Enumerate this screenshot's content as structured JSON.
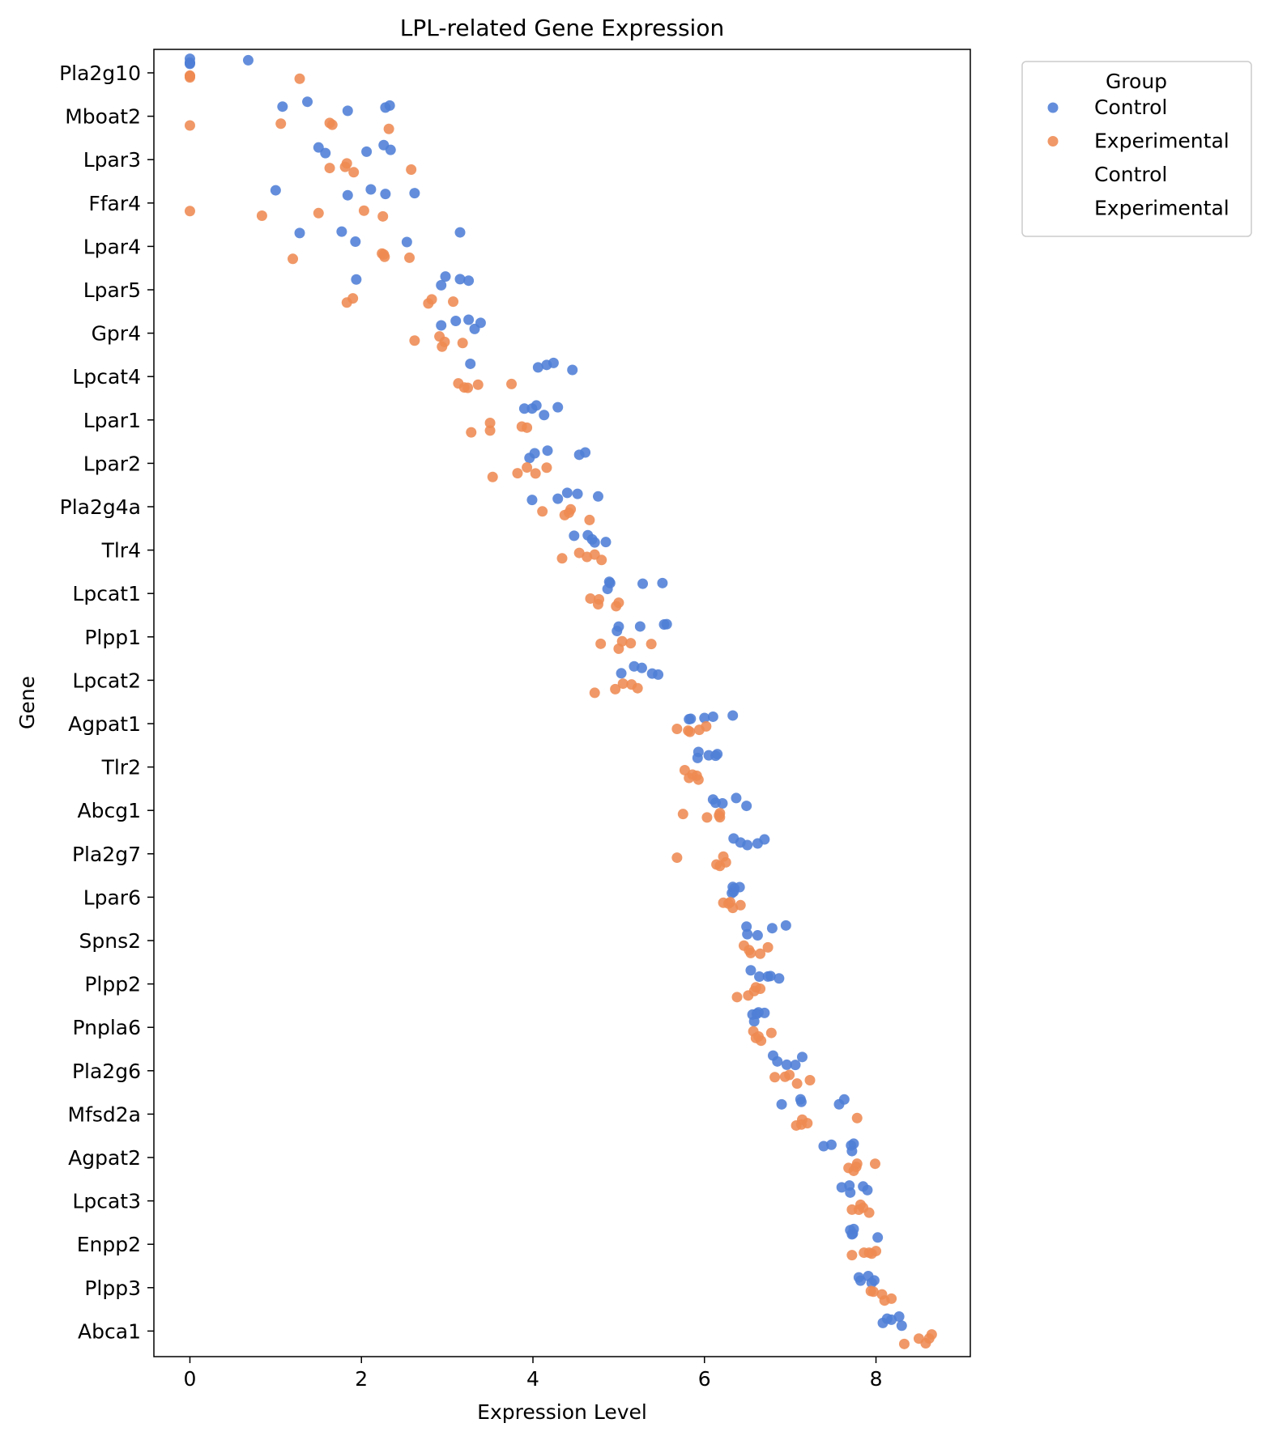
{
  "chart_data": {
    "type": "scatter",
    "title": "LPL-related Gene Expression",
    "xlabel": "Expression Level",
    "ylabel": "Gene",
    "xlim": [
      -0.42,
      9.1
    ],
    "x_ticks": [
      0,
      2,
      4,
      6,
      8
    ],
    "grid": false,
    "legend": {
      "title": "Group",
      "placement": "upper-left-outside",
      "entries": [
        "Control",
        "Experimental",
        "Control",
        "Experimental"
      ]
    },
    "colors": {
      "Control": "#4e7ed6",
      "Experimental": "#ee8a52"
    },
    "categories": [
      "Pla2g10",
      "Mboat2",
      "Lpar3",
      "Ffar4",
      "Lpar4",
      "Lpar5",
      "Gpr4",
      "Lpcat4",
      "Lpar1",
      "Lpar2",
      "Pla2g4a",
      "Tlr4",
      "Lpcat1",
      "Plpp1",
      "Lpcat2",
      "Agpat1",
      "Tlr2",
      "Abcg1",
      "Pla2g7",
      "Lpar6",
      "Spns2",
      "Plpp2",
      "Pnpla6",
      "Pla2g6",
      "Mfsd2a",
      "Agpat2",
      "Lpcat3",
      "Enpp2",
      "Plpp3",
      "Abca1"
    ],
    "series": [
      {
        "name": "Control",
        "values": [
          [
            0,
            0,
            0,
            0.68,
            0
          ],
          [
            1.08,
            1.37,
            1.84,
            2.28,
            2.33
          ],
          [
            1.5,
            1.58,
            2.06,
            2.26,
            2.34
          ],
          [
            1.0,
            1.84,
            2.11,
            2.28,
            2.62
          ],
          [
            1.28,
            1.77,
            1.93,
            2.53,
            3.15
          ],
          [
            1.94,
            2.93,
            2.98,
            3.15,
            3.25
          ],
          [
            2.93,
            3.1,
            3.25,
            3.32,
            3.39
          ],
          [
            3.27,
            4.06,
            4.16,
            4.24,
            4.46
          ],
          [
            3.9,
            3.99,
            4.04,
            4.13,
            4.29
          ],
          [
            3.96,
            4.02,
            4.17,
            4.54,
            4.61
          ],
          [
            3.99,
            4.29,
            4.4,
            4.52,
            4.76
          ],
          [
            4.48,
            4.64,
            4.69,
            4.72,
            4.85
          ],
          [
            4.87,
            4.89,
            4.9,
            5.28,
            5.51
          ],
          [
            4.98,
            5.0,
            5.25,
            5.53,
            5.56
          ],
          [
            5.03,
            5.18,
            5.27,
            5.39,
            5.46
          ],
          [
            5.82,
            5.84,
            6.0,
            6.1,
            6.33
          ],
          [
            5.92,
            5.93,
            6.05,
            6.13,
            6.15
          ],
          [
            6.1,
            6.13,
            6.21,
            6.37,
            6.49
          ],
          [
            6.34,
            6.42,
            6.5,
            6.62,
            6.7
          ],
          [
            6.32,
            6.33,
            6.34,
            6.35,
            6.41
          ],
          [
            6.49,
            6.5,
            6.62,
            6.79,
            6.95
          ],
          [
            6.54,
            6.64,
            6.74,
            6.77,
            6.87
          ],
          [
            6.56,
            6.58,
            6.61,
            6.63,
            6.7
          ],
          [
            6.8,
            6.85,
            6.96,
            7.06,
            7.14
          ],
          [
            6.9,
            7.12,
            7.13,
            7.57,
            7.63
          ],
          [
            7.39,
            7.48,
            7.71,
            7.72,
            7.74
          ],
          [
            7.6,
            7.69,
            7.7,
            7.85,
            7.9
          ],
          [
            7.7,
            7.72,
            7.73,
            7.74,
            8.02
          ],
          [
            7.8,
            7.82,
            7.91,
            7.95,
            7.98
          ],
          [
            8.08,
            8.13,
            8.18,
            8.27,
            8.3
          ]
        ]
      },
      {
        "name": "Experimental",
        "values": [
          [
            0,
            0,
            0,
            1.28,
            0
          ],
          [
            0,
            1.06,
            1.63,
            1.66,
            2.32
          ],
          [
            1.63,
            1.81,
            1.83,
            1.91,
            2.58
          ],
          [
            0,
            0.84,
            1.5,
            2.03,
            2.25
          ],
          [
            1.2,
            2.24,
            2.26,
            2.27,
            2.56
          ],
          [
            1.83,
            1.9,
            2.78,
            2.82,
            3.07
          ],
          [
            2.62,
            2.91,
            2.94,
            2.97,
            3.18
          ],
          [
            3.13,
            3.2,
            3.24,
            3.36,
            3.75
          ],
          [
            3.28,
            3.5,
            3.5,
            3.87,
            3.93
          ],
          [
            3.53,
            3.82,
            3.93,
            4.03,
            4.16
          ],
          [
            4.11,
            4.37,
            4.42,
            4.44,
            4.66
          ],
          [
            4.34,
            4.54,
            4.63,
            4.72,
            4.8
          ],
          [
            4.67,
            4.76,
            4.77,
            4.97,
            5.0
          ],
          [
            4.79,
            5.0,
            5.04,
            5.14,
            5.38
          ],
          [
            4.72,
            4.96,
            5.05,
            5.15,
            5.22
          ],
          [
            5.68,
            5.81,
            5.83,
            5.94,
            6.02
          ],
          [
            5.77,
            5.82,
            5.86,
            5.91,
            5.93
          ],
          [
            5.75,
            6.03,
            6.17,
            6.18,
            6.18
          ],
          [
            5.68,
            6.14,
            6.18,
            6.22,
            6.25
          ],
          [
            6.22,
            6.28,
            6.3,
            6.33,
            6.42
          ],
          [
            6.46,
            6.52,
            6.54,
            6.65,
            6.74
          ],
          [
            6.38,
            6.51,
            6.58,
            6.6,
            6.65
          ],
          [
            6.57,
            6.6,
            6.63,
            6.66,
            6.78
          ],
          [
            6.82,
            6.94,
            6.99,
            7.08,
            7.23
          ],
          [
            7.07,
            7.13,
            7.14,
            7.2,
            7.78
          ],
          [
            7.68,
            7.74,
            7.77,
            7.78,
            7.99
          ],
          [
            7.72,
            7.8,
            7.82,
            7.85,
            7.92
          ],
          [
            7.72,
            7.86,
            7.92,
            7.95,
            8.0
          ],
          [
            7.94,
            7.97,
            8.07,
            8.1,
            8.18
          ],
          [
            8.33,
            8.5,
            8.58,
            8.62,
            8.65
          ]
        ]
      }
    ]
  }
}
